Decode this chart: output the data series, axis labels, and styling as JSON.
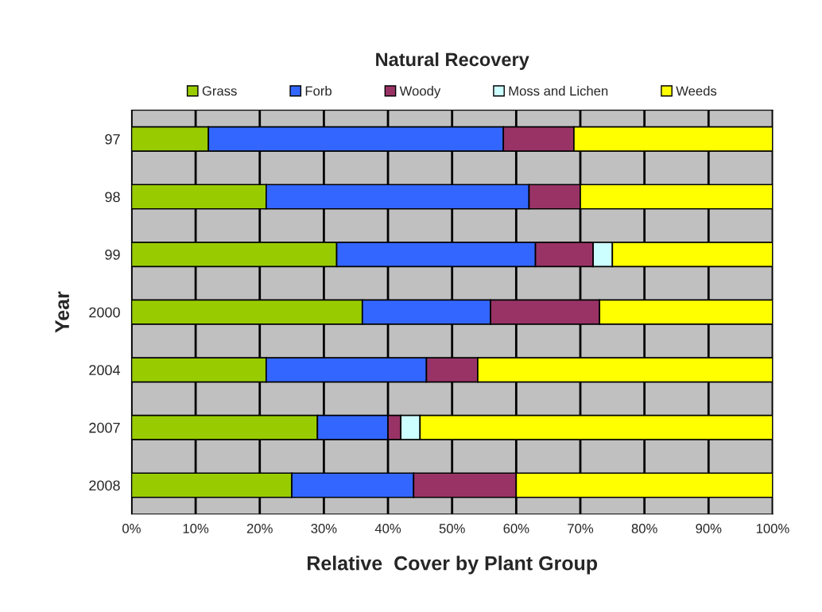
{
  "chart_data": {
    "type": "bar",
    "orientation": "horizontal",
    "stacked": true,
    "title": "Natural Recovery",
    "xlabel": "Relative  Cover by Plant Group",
    "ylabel": "Year",
    "categories": [
      "97",
      "98",
      "99",
      "2000",
      "2004",
      "2007",
      "2008"
    ],
    "series": [
      {
        "name": "Grass",
        "color": "#99cc00",
        "values": [
          12,
          21,
          32,
          36,
          21,
          29,
          25
        ]
      },
      {
        "name": "Forb",
        "color": "#3366ff",
        "values": [
          46,
          41,
          31,
          20,
          25,
          11,
          19
        ]
      },
      {
        "name": "Woody",
        "color": "#993366",
        "values": [
          11,
          8,
          9,
          17,
          8,
          2,
          16
        ]
      },
      {
        "name": "Moss and Lichen",
        "color": "#ccffff",
        "values": [
          null,
          null,
          3,
          null,
          null,
          3,
          null
        ]
      },
      {
        "name": "Weeds",
        "color": "#ffff00",
        "values": [
          31,
          30,
          25,
          27,
          46,
          55,
          40
        ]
      }
    ],
    "xlim": [
      0,
      100
    ],
    "xticks": [
      {
        "value": 0,
        "label": "0%"
      },
      {
        "value": 10,
        "label": "10%"
      },
      {
        "value": 20,
        "label": "20%"
      },
      {
        "value": 30,
        "label": "30%"
      },
      {
        "value": 40,
        "label": "40%"
      },
      {
        "value": 50,
        "label": "50%"
      },
      {
        "value": 60,
        "label": "60%"
      },
      {
        "value": 70,
        "label": "70%"
      },
      {
        "value": 80,
        "label": "80%"
      },
      {
        "value": 90,
        "label": "90%"
      },
      {
        "value": 100,
        "label": "100%"
      }
    ],
    "grid": "x",
    "legend": "top"
  }
}
